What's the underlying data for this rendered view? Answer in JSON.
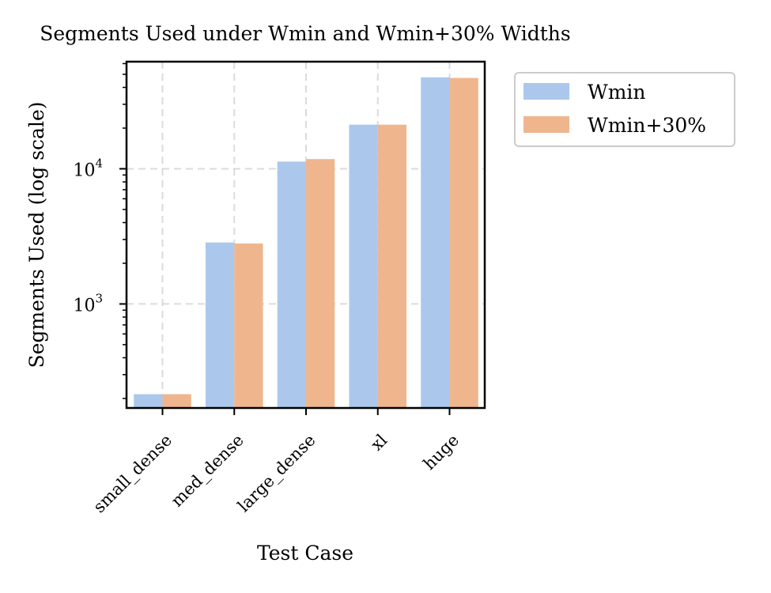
{
  "chart_data": {
    "type": "bar",
    "title": "Segments Used under Wmin and Wmin+30% Widths",
    "xlabel": "Test Case",
    "ylabel": "Segments Used (log scale)",
    "yscale": "log",
    "ylim": [
      170,
      62000
    ],
    "yticks": [
      {
        "value": 1000,
        "base": "10",
        "exp": "3"
      },
      {
        "value": 10000,
        "base": "10",
        "exp": "4"
      }
    ],
    "grid": true,
    "categories": [
      "small_dense",
      "med_dense",
      "large_dense",
      "xl",
      "huge"
    ],
    "series": [
      {
        "name": "Wmin",
        "color": "#abc8ec",
        "values": [
          215,
          2850,
          11300,
          21200,
          47500
        ]
      },
      {
        "name": "Wmin+30%",
        "color": "#efb68e",
        "values": [
          215,
          2800,
          11800,
          21200,
          47000
        ]
      }
    ],
    "legend": "outside-top-right"
  }
}
